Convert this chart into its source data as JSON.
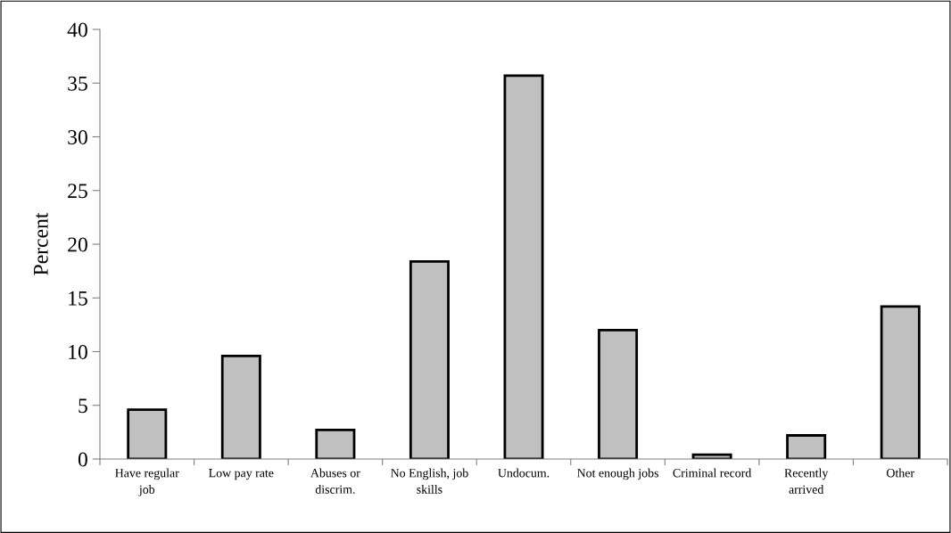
{
  "chart_data": {
    "type": "bar",
    "ylabel": "Percent",
    "categories": [
      "Have regular\njob",
      "Low pay rate",
      "Abuses or\ndiscrim.",
      "No English, job\nskills",
      "Undocum.",
      "Not enough jobs",
      "Criminal record",
      "Recently\narrived",
      "Other"
    ],
    "values": [
      4.6,
      9.6,
      2.7,
      18.4,
      35.7,
      12.0,
      0.4,
      2.2,
      14.2
    ],
    "color": "#c0c0c0",
    "ylim": [
      0,
      40
    ],
    "yticks": [
      0,
      5,
      10,
      15,
      20,
      25,
      30,
      35,
      40
    ],
    "grid": false,
    "legend": false
  }
}
